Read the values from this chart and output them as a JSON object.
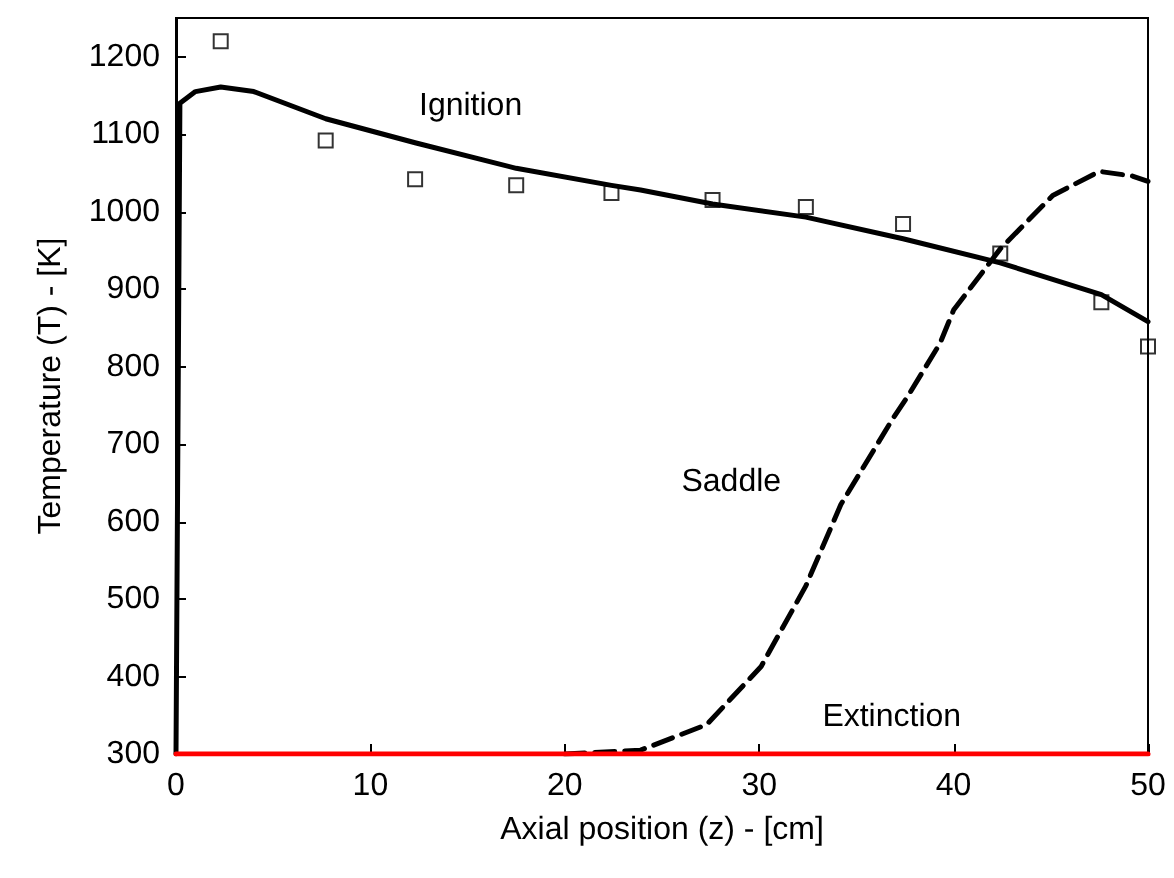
{
  "chart_data": {
    "type": "line",
    "xlabel": "Axial position (z) - [cm]",
    "ylabel": "Temperature (T) - [K]",
    "xlim": [
      0,
      50
    ],
    "xticks": [
      0,
      10,
      20,
      30,
      40,
      50
    ],
    "ylim": [
      300,
      1250
    ],
    "yticks": [
      300,
      400,
      500,
      600,
      700,
      800,
      900,
      {
        "value": 1000,
        "label": "1000"
      },
      {
        "value": 1100,
        "label": "1100"
      },
      {
        "value": 1200,
        "label": "1200"
      }
    ],
    "grid": false,
    "series": [
      {
        "name": "Ignition",
        "color": "#000000",
        "line_style": "solid",
        "marker": "none",
        "x": [
          0,
          0.2,
          1,
          2.3,
          4,
          7.7,
          12.3,
          17.5,
          22.4,
          23.9,
          27.6,
          32.4,
          37.4,
          42.4,
          47.6,
          50
        ],
        "values": [
          300,
          1140,
          1155,
          1161,
          1155,
          1120,
          1089,
          1056,
          1034,
          1028,
          1010,
          993,
          965,
          934,
          893,
          858
        ]
      },
      {
        "name": "Saddle",
        "color": "#000000",
        "line_style": "dashed",
        "marker": "none",
        "x": [
          20,
          23.9,
          27.3,
          30.1,
          32.4,
          34.2,
          36.9,
          37.6,
          39.3,
          40,
          42.4,
          45.1,
          47.5,
          49.2,
          50
        ],
        "values": [
          300,
          305,
          338,
          413,
          517,
          622,
          734,
          760,
          830,
          873,
          952,
          1021,
          1052,
          1046,
          1039
        ]
      },
      {
        "name": "Extinction",
        "color": "#ff0000",
        "line_style": "solid",
        "marker": "none",
        "x": [
          0,
          50
        ],
        "values": [
          300,
          300
        ]
      },
      {
        "type": "scatter",
        "color": "#000000",
        "marker": "square",
        "x": [
          2.3,
          7.7,
          12.3,
          17.5,
          22.4,
          27.6,
          32.4,
          37.4,
          42.4,
          47.6,
          50
        ],
        "values": [
          1220,
          1092,
          1042,
          1034,
          1024,
          1015,
          1006,
          984,
          946,
          883,
          826
        ]
      }
    ]
  }
}
